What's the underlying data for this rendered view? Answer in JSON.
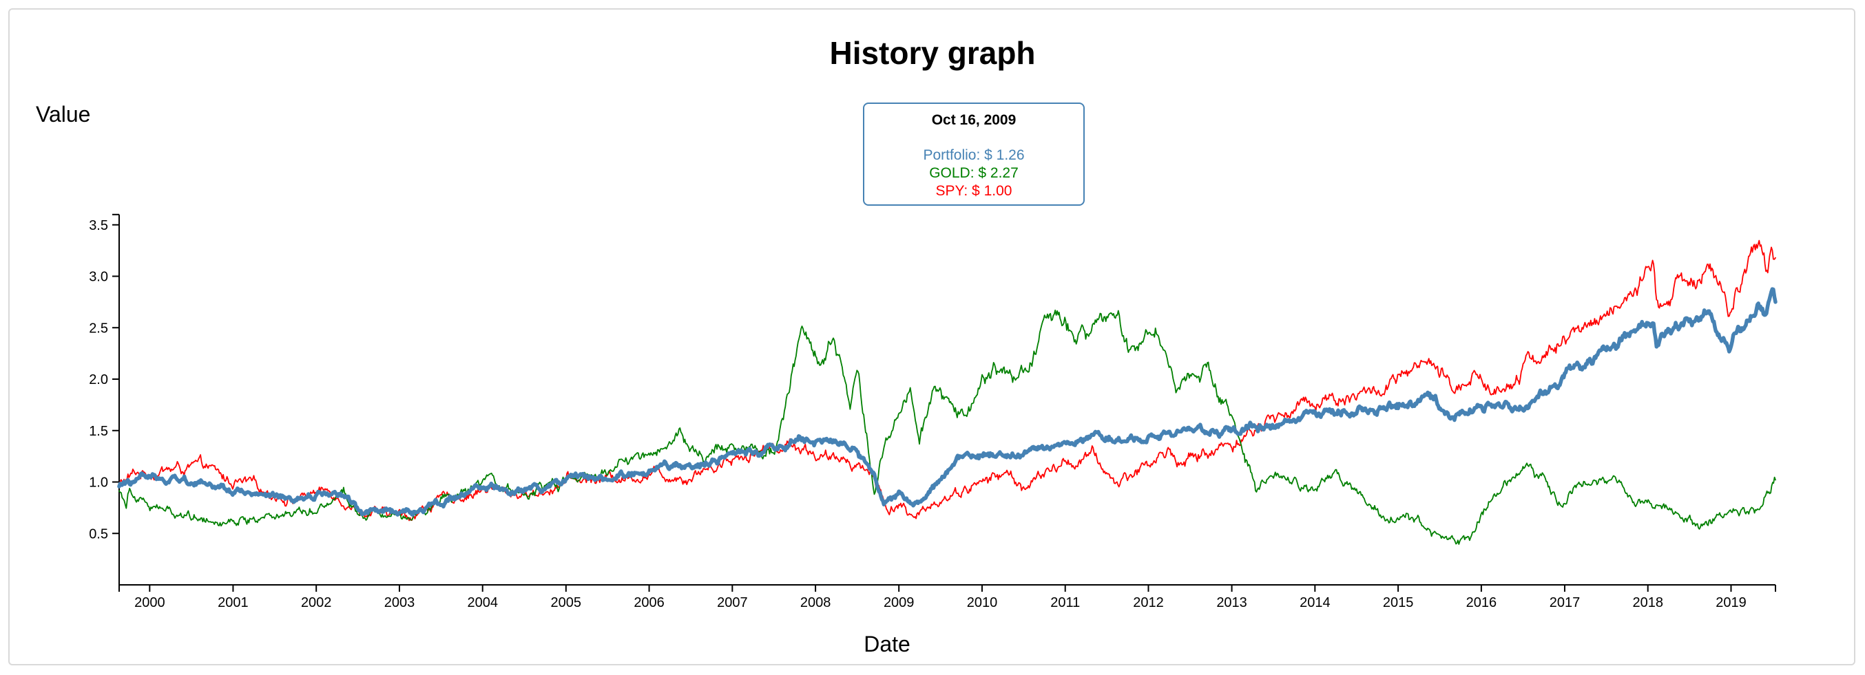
{
  "chart_data": {
    "type": "line",
    "title": "History graph",
    "xlabel": "Date",
    "ylabel": "Value",
    "x_range": [
      "1999-08-20",
      "2019-07-15"
    ],
    "ylim": [
      0,
      3.6
    ],
    "y_ticks": [
      0.5,
      1.0,
      1.5,
      2.0,
      2.5,
      3.0,
      3.5
    ],
    "y_tick_labels": [
      "0.5",
      "1.0",
      "1.5",
      "2.0",
      "2.5",
      "3.0",
      "3.5"
    ],
    "x_ticks": [
      "2000-01-01",
      "2001-01-01",
      "2002-01-01",
      "2003-01-01",
      "2004-01-01",
      "2005-01-01",
      "2006-01-01",
      "2007-01-01",
      "2008-01-01",
      "2009-01-01",
      "2010-01-01",
      "2011-01-01",
      "2012-01-01",
      "2013-01-01",
      "2014-01-01",
      "2015-01-01",
      "2016-01-01",
      "2017-01-01",
      "2018-01-01",
      "2019-01-01"
    ],
    "x_tick_labels": [
      "2000",
      "2001",
      "2002",
      "2003",
      "2004",
      "2005",
      "2006",
      "2007",
      "2008",
      "2009",
      "2010",
      "2011",
      "2012",
      "2013",
      "2014",
      "2015",
      "2016",
      "2017",
      "2018",
      "2019"
    ],
    "grid": false,
    "series": [
      {
        "name": "SPY",
        "color": "#ff0000",
        "stroke": "thin",
        "points": [
          [
            "1999-08-20",
            0.97
          ],
          [
            "1999-11-01",
            1.08
          ],
          [
            "2000-03-20",
            1.12
          ],
          [
            "2000-09-01",
            1.14
          ],
          [
            "2000-12-01",
            1.02
          ],
          [
            "2001-03-20",
            0.96
          ],
          [
            "2001-09-20",
            0.83
          ],
          [
            "2001-12-20",
            0.9
          ],
          [
            "2002-03-15",
            0.91
          ],
          [
            "2002-07-20",
            0.72
          ],
          [
            "2002-10-10",
            0.68
          ],
          [
            "2003-03-10",
            0.68
          ],
          [
            "2003-06-01",
            0.8
          ],
          [
            "2004-01-01",
            0.93
          ],
          [
            "2004-08-10",
            0.88
          ],
          [
            "2005-01-01",
            1.01
          ],
          [
            "2005-08-01",
            1.04
          ],
          [
            "2006-01-01",
            1.09
          ],
          [
            "2006-06-15",
            1.06
          ],
          [
            "2007-01-01",
            1.24
          ],
          [
            "2007-07-15",
            1.35
          ],
          [
            "2007-10-10",
            1.38
          ],
          [
            "2008-03-15",
            1.19
          ],
          [
            "2008-05-15",
            1.25
          ],
          [
            "2008-09-01",
            1.1
          ],
          [
            "2008-11-20",
            0.72
          ],
          [
            "2009-01-05",
            0.82
          ],
          [
            "2009-03-09",
            0.6
          ],
          [
            "2009-06-01",
            0.82
          ],
          [
            "2010-01-01",
            1.0
          ],
          [
            "2010-04-20",
            1.08
          ],
          [
            "2010-07-02",
            0.95
          ],
          [
            "2011-01-01",
            1.18
          ],
          [
            "2011-04-29",
            1.25
          ],
          [
            "2011-08-08",
            0.99
          ],
          [
            "2012-01-01",
            1.18
          ],
          [
            "2012-04-01",
            1.3
          ],
          [
            "2012-06-01",
            1.19
          ],
          [
            "2013-01-01",
            1.38
          ],
          [
            "2013-06-01",
            1.58
          ],
          [
            "2014-01-01",
            1.8
          ],
          [
            "2014-10-15",
            1.88
          ],
          [
            "2015-05-20",
            2.14
          ],
          [
            "2015-08-25",
            1.88
          ],
          [
            "2015-12-01",
            2.08
          ],
          [
            "2016-02-11",
            1.86
          ],
          [
            "2016-08-01",
            2.18
          ],
          [
            "2017-01-01",
            2.35
          ],
          [
            "2018-01-26",
            3.0
          ],
          [
            "2018-02-08",
            2.7
          ],
          [
            "2018-10-01",
            3.15
          ],
          [
            "2018-12-24",
            2.55
          ],
          [
            "2019-01-15",
            2.8
          ],
          [
            "2019-04-30",
            3.25
          ],
          [
            "2019-06-03",
            3.05
          ],
          [
            "2019-07-01",
            3.3
          ],
          [
            "2019-07-15",
            3.18
          ]
        ]
      },
      {
        "name": "GOLD",
        "color": "#008000",
        "stroke": "thin",
        "points": [
          [
            "1999-08-20",
            0.94
          ],
          [
            "1999-09-20",
            0.8
          ],
          [
            "1999-10-05",
            0.98
          ],
          [
            "2000-02-01",
            0.73
          ],
          [
            "2000-07-01",
            0.68
          ],
          [
            "2000-11-01",
            0.63
          ],
          [
            "2001-04-01",
            0.64
          ],
          [
            "2001-10-01",
            0.73
          ],
          [
            "2002-02-01",
            0.78
          ],
          [
            "2002-05-01",
            0.92
          ],
          [
            "2002-07-01",
            0.7
          ],
          [
            "2002-10-01",
            0.72
          ],
          [
            "2003-03-01",
            0.7
          ],
          [
            "2003-08-01",
            0.84
          ],
          [
            "2004-02-01",
            0.97
          ],
          [
            "2004-07-01",
            0.88
          ],
          [
            "2005-01-01",
            1.0
          ],
          [
            "2005-05-01",
            1.05
          ],
          [
            "2005-12-01",
            1.24
          ],
          [
            "2006-05-12",
            1.48
          ],
          [
            "2006-08-01",
            1.25
          ],
          [
            "2007-02-01",
            1.38
          ],
          [
            "2007-07-01",
            1.3
          ],
          [
            "2007-11-07",
            2.5
          ],
          [
            "2008-02-01",
            2.1
          ],
          [
            "2008-03-15",
            2.4
          ],
          [
            "2008-06-01",
            1.8
          ],
          [
            "2008-07-01",
            2.2
          ],
          [
            "2008-09-15",
            0.92
          ],
          [
            "2008-11-01",
            1.35
          ],
          [
            "2009-02-20",
            2.0
          ],
          [
            "2009-04-01",
            1.5
          ],
          [
            "2009-06-01",
            1.85
          ],
          [
            "2009-10-01",
            1.7
          ],
          [
            "2010-03-01",
            2.1
          ],
          [
            "2010-06-01",
            2.0
          ],
          [
            "2010-12-01",
            2.65
          ],
          [
            "2011-04-01",
            2.38
          ],
          [
            "2011-08-22",
            2.68
          ],
          [
            "2011-10-01",
            2.35
          ],
          [
            "2012-02-01",
            2.48
          ],
          [
            "2012-05-01",
            1.95
          ],
          [
            "2012-09-20",
            2.1
          ],
          [
            "2013-01-01",
            1.65
          ],
          [
            "2013-04-15",
            0.9
          ],
          [
            "2013-08-01",
            1.05
          ],
          [
            "2014-01-01",
            0.9
          ],
          [
            "2014-04-01",
            1.08
          ],
          [
            "2014-11-01",
            0.62
          ],
          [
            "2015-02-01",
            0.7
          ],
          [
            "2015-07-01",
            0.45
          ],
          [
            "2015-11-15",
            0.4
          ],
          [
            "2016-02-15",
            0.85
          ],
          [
            "2016-07-06",
            1.2
          ],
          [
            "2016-12-15",
            0.85
          ],
          [
            "2017-04-15",
            1.05
          ],
          [
            "2017-10-01",
            0.9
          ],
          [
            "2018-01-15",
            0.8
          ],
          [
            "2018-04-15",
            0.72
          ],
          [
            "2018-08-15",
            0.58
          ],
          [
            "2019-01-15",
            0.7
          ],
          [
            "2019-05-01",
            0.7
          ],
          [
            "2019-07-15",
            1.02
          ]
        ]
      },
      {
        "name": "Portfolio",
        "color": "#4682b4",
        "stroke": "thick",
        "points": [
          [
            "1999-08-20",
            0.97
          ],
          [
            "2000-01-01",
            1.05
          ],
          [
            "2000-06-01",
            1.03
          ],
          [
            "2000-12-01",
            0.95
          ],
          [
            "2001-04-01",
            0.88
          ],
          [
            "2001-09-20",
            0.8
          ],
          [
            "2002-01-01",
            0.88
          ],
          [
            "2002-05-01",
            0.87
          ],
          [
            "2002-07-20",
            0.7
          ],
          [
            "2002-10-01",
            0.72
          ],
          [
            "2003-03-01",
            0.7
          ],
          [
            "2003-06-01",
            0.8
          ],
          [
            "2004-01-01",
            0.93
          ],
          [
            "2004-06-01",
            0.9
          ],
          [
            "2005-01-01",
            1.0
          ],
          [
            "2005-08-01",
            1.05
          ],
          [
            "2006-01-01",
            1.1
          ],
          [
            "2006-06-01",
            1.16
          ],
          [
            "2007-01-01",
            1.25
          ],
          [
            "2007-11-01",
            1.42
          ],
          [
            "2008-04-01",
            1.38
          ],
          [
            "2008-07-01",
            1.3
          ],
          [
            "2008-09-15",
            1.05
          ],
          [
            "2008-10-27",
            0.8
          ],
          [
            "2009-01-01",
            0.88
          ],
          [
            "2009-03-09",
            0.8
          ],
          [
            "2009-10-16",
            1.26
          ],
          [
            "2010-05-01",
            1.25
          ],
          [
            "2011-01-01",
            1.38
          ],
          [
            "2011-05-01",
            1.45
          ],
          [
            "2011-09-01",
            1.4
          ],
          [
            "2012-01-01",
            1.45
          ],
          [
            "2012-06-01",
            1.5
          ],
          [
            "2013-01-01",
            1.48
          ],
          [
            "2014-01-01",
            1.65
          ],
          [
            "2015-01-01",
            1.75
          ],
          [
            "2015-06-01",
            1.8
          ],
          [
            "2015-09-01",
            1.65
          ],
          [
            "2016-01-01",
            1.75
          ],
          [
            "2016-07-01",
            1.72
          ],
          [
            "2017-01-01",
            2.02
          ],
          [
            "2018-01-26",
            2.58
          ],
          [
            "2018-02-08",
            2.38
          ],
          [
            "2018-10-01",
            2.68
          ],
          [
            "2018-12-24",
            2.25
          ],
          [
            "2019-01-15",
            2.45
          ],
          [
            "2019-05-01",
            2.72
          ],
          [
            "2019-06-01",
            2.58
          ],
          [
            "2019-07-01",
            2.85
          ],
          [
            "2019-07-15",
            2.75
          ]
        ]
      }
    ]
  },
  "tooltip": {
    "date": "Oct 16, 2009",
    "portfolio": "Portfolio: $ 1.26",
    "gold": "GOLD: $ 2.27",
    "spy": "SPY: $ 1.00"
  }
}
